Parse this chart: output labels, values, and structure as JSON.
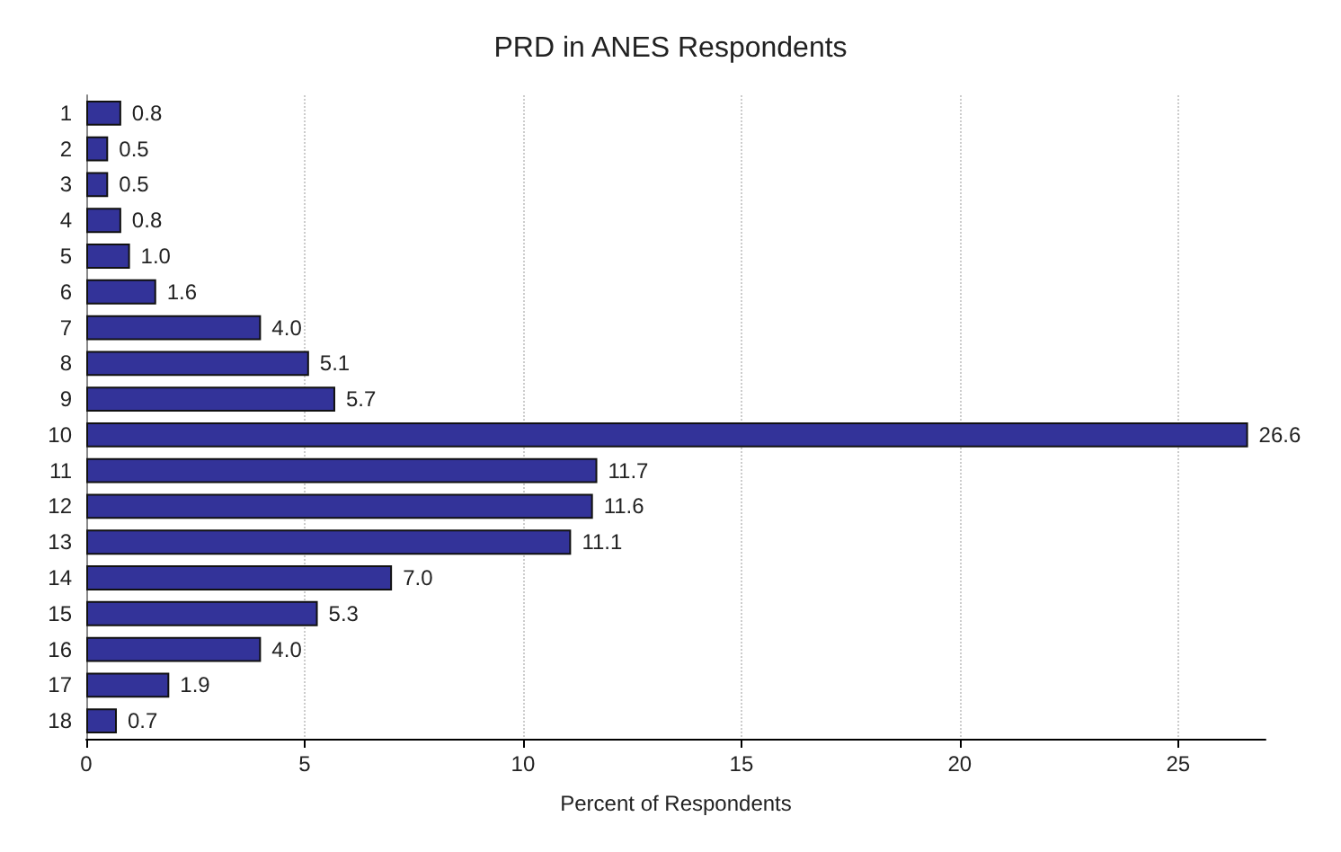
{
  "chart_data": {
    "type": "bar",
    "orientation": "horizontal",
    "title": "PRD in ANES Respondents",
    "xlabel": "Percent of Respondents",
    "categories": [
      "1",
      "2",
      "3",
      "4",
      "5",
      "6",
      "7",
      "8",
      "9",
      "10",
      "11",
      "12",
      "13",
      "14",
      "15",
      "16",
      "17",
      "18"
    ],
    "values": [
      0.8,
      0.5,
      0.5,
      0.8,
      1.0,
      1.6,
      4.0,
      5.1,
      5.7,
      26.6,
      11.7,
      11.6,
      11.1,
      7.0,
      5.3,
      4.0,
      1.9,
      0.7
    ],
    "value_labels": [
      "0.8",
      "0.5",
      "0.5",
      "0.8",
      "1.0",
      "1.6",
      "4.0",
      "5.1",
      "5.7",
      "26.6",
      "11.7",
      "11.6",
      "11.1",
      "7.0",
      "5.3",
      "4.0",
      "1.9",
      "0.7"
    ],
    "color": "#333399",
    "xlim": [
      0,
      27
    ],
    "xticks": [
      0,
      5,
      10,
      15,
      20,
      25
    ],
    "grid": "x"
  }
}
